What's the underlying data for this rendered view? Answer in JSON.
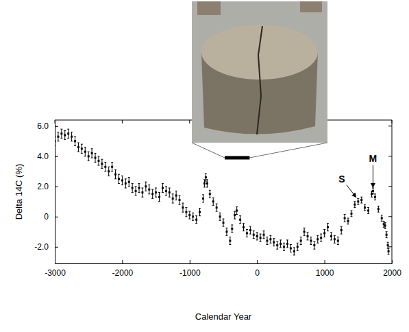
{
  "chart_data": {
    "type": "scatter",
    "x_label": "Calendar Year",
    "y_label": "Delta 14C (%)",
    "xlim": [
      -3000,
      2000
    ],
    "ylim": [
      -3.1,
      6.4
    ],
    "xticks": [
      -3000,
      -2000,
      -1000,
      0,
      1000,
      2000
    ],
    "yticks": [
      {
        "value": -2,
        "label": "-2.0"
      },
      0,
      {
        "value": 2,
        "label": "2.0"
      },
      {
        "value": 4,
        "label": "4.0"
      },
      {
        "value": 6,
        "label": "6.0"
      }
    ],
    "marker": "square",
    "color": "#000000",
    "x": [
      -3000,
      -2950,
      -2900,
      -2850,
      -2800,
      -2750,
      -2700,
      -2650,
      -2600,
      -2550,
      -2500,
      -2450,
      -2400,
      -2350,
      -2300,
      -2250,
      -2200,
      -2150,
      -2100,
      -2050,
      -2000,
      -1950,
      -1900,
      -1850,
      -1800,
      -1750,
      -1700,
      -1650,
      -1600,
      -1550,
      -1500,
      -1450,
      -1400,
      -1350,
      -1300,
      -1250,
      -1200,
      -1150,
      -1100,
      -1050,
      -1000,
      -950,
      -900,
      -850,
      -800,
      -780,
      -760,
      -740,
      -700,
      -650,
      -600,
      -550,
      -500,
      -450,
      -400,
      -370,
      -330,
      -300,
      -250,
      -200,
      -150,
      -100,
      -50,
      0,
      50,
      100,
      150,
      200,
      250,
      300,
      350,
      400,
      450,
      500,
      550,
      600,
      650,
      700,
      750,
      800,
      850,
      900,
      950,
      1000,
      1050,
      1100,
      1150,
      1200,
      1250,
      1300,
      1350,
      1400,
      1450,
      1500,
      1550,
      1600,
      1650,
      1700,
      1720,
      1750,
      1800,
      1850,
      1880,
      1900,
      1920,
      1940,
      1950
    ],
    "values": [
      5.0,
      5.3,
      5.5,
      5.4,
      5.5,
      5.3,
      5.0,
      4.6,
      4.5,
      4.3,
      4.0,
      4.2,
      3.9,
      3.7,
      3.5,
      3.3,
      3.0,
      3.3,
      2.8,
      2.5,
      2.4,
      2.2,
      2.3,
      1.9,
      1.7,
      1.9,
      1.6,
      2.0,
      1.8,
      1.5,
      1.6,
      1.3,
      1.9,
      1.7,
      1.6,
      1.2,
      1.4,
      1.1,
      0.6,
      0.3,
      0.1,
      0.0,
      -0.2,
      0.3,
      1.2,
      2.2,
      2.6,
      2.2,
      1.5,
      1.0,
      0.6,
      0.0,
      -0.4,
      -1.0,
      -1.6,
      -0.8,
      0.1,
      0.4,
      -0.2,
      -0.7,
      -1.1,
      -0.9,
      -1.2,
      -1.3,
      -1.4,
      -1.2,
      -1.6,
      -1.5,
      -1.7,
      -1.9,
      -1.8,
      -2.0,
      -1.8,
      -2.1,
      -2.3,
      -2.0,
      -1.6,
      -1.0,
      -1.3,
      -1.6,
      -1.9,
      -1.5,
      -1.4,
      -1.1,
      -0.7,
      -1.3,
      -1.5,
      -1.6,
      -0.9,
      -0.1,
      -0.3,
      0.2,
      0.8,
      1.0,
      1.1,
      0.6,
      0.4,
      1.5,
      1.7,
      1.3,
      0.5,
      -0.1,
      -0.5,
      -0.6,
      -1.2,
      -1.9,
      -2.3
    ],
    "errors": [
      0.3,
      0.3,
      0.3,
      0.3,
      0.3,
      0.3,
      0.3,
      0.3,
      0.3,
      0.3,
      0.3,
      0.3,
      0.3,
      0.3,
      0.3,
      0.3,
      0.3,
      0.3,
      0.3,
      0.3,
      0.3,
      0.3,
      0.3,
      0.3,
      0.3,
      0.3,
      0.3,
      0.3,
      0.3,
      0.3,
      0.3,
      0.3,
      0.3,
      0.3,
      0.3,
      0.3,
      0.3,
      0.3,
      0.3,
      0.3,
      0.25,
      0.25,
      0.25,
      0.25,
      0.25,
      0.25,
      0.25,
      0.25,
      0.25,
      0.25,
      0.25,
      0.25,
      0.25,
      0.25,
      0.25,
      0.25,
      0.25,
      0.25,
      0.25,
      0.25,
      0.25,
      0.25,
      0.25,
      0.25,
      0.25,
      0.25,
      0.25,
      0.25,
      0.25,
      0.25,
      0.25,
      0.25,
      0.25,
      0.25,
      0.25,
      0.25,
      0.25,
      0.25,
      0.25,
      0.25,
      0.25,
      0.25,
      0.25,
      0.25,
      0.25,
      0.25,
      0.25,
      0.25,
      0.25,
      0.25,
      0.2,
      0.2,
      0.2,
      0.2,
      0.2,
      0.2,
      0.2,
      0.2,
      0.2,
      0.2,
      0.2,
      0.2,
      0.2,
      0.2,
      0.2,
      0.2,
      0.2
    ],
    "annotations": [
      {
        "text": "S",
        "x": 1500,
        "y": 1.1
      },
      {
        "text": "M",
        "x": 1720,
        "y": 1.7
      }
    ],
    "span": {
      "x": [
        -480,
        -110
      ],
      "y": 3.9
    }
  }
}
